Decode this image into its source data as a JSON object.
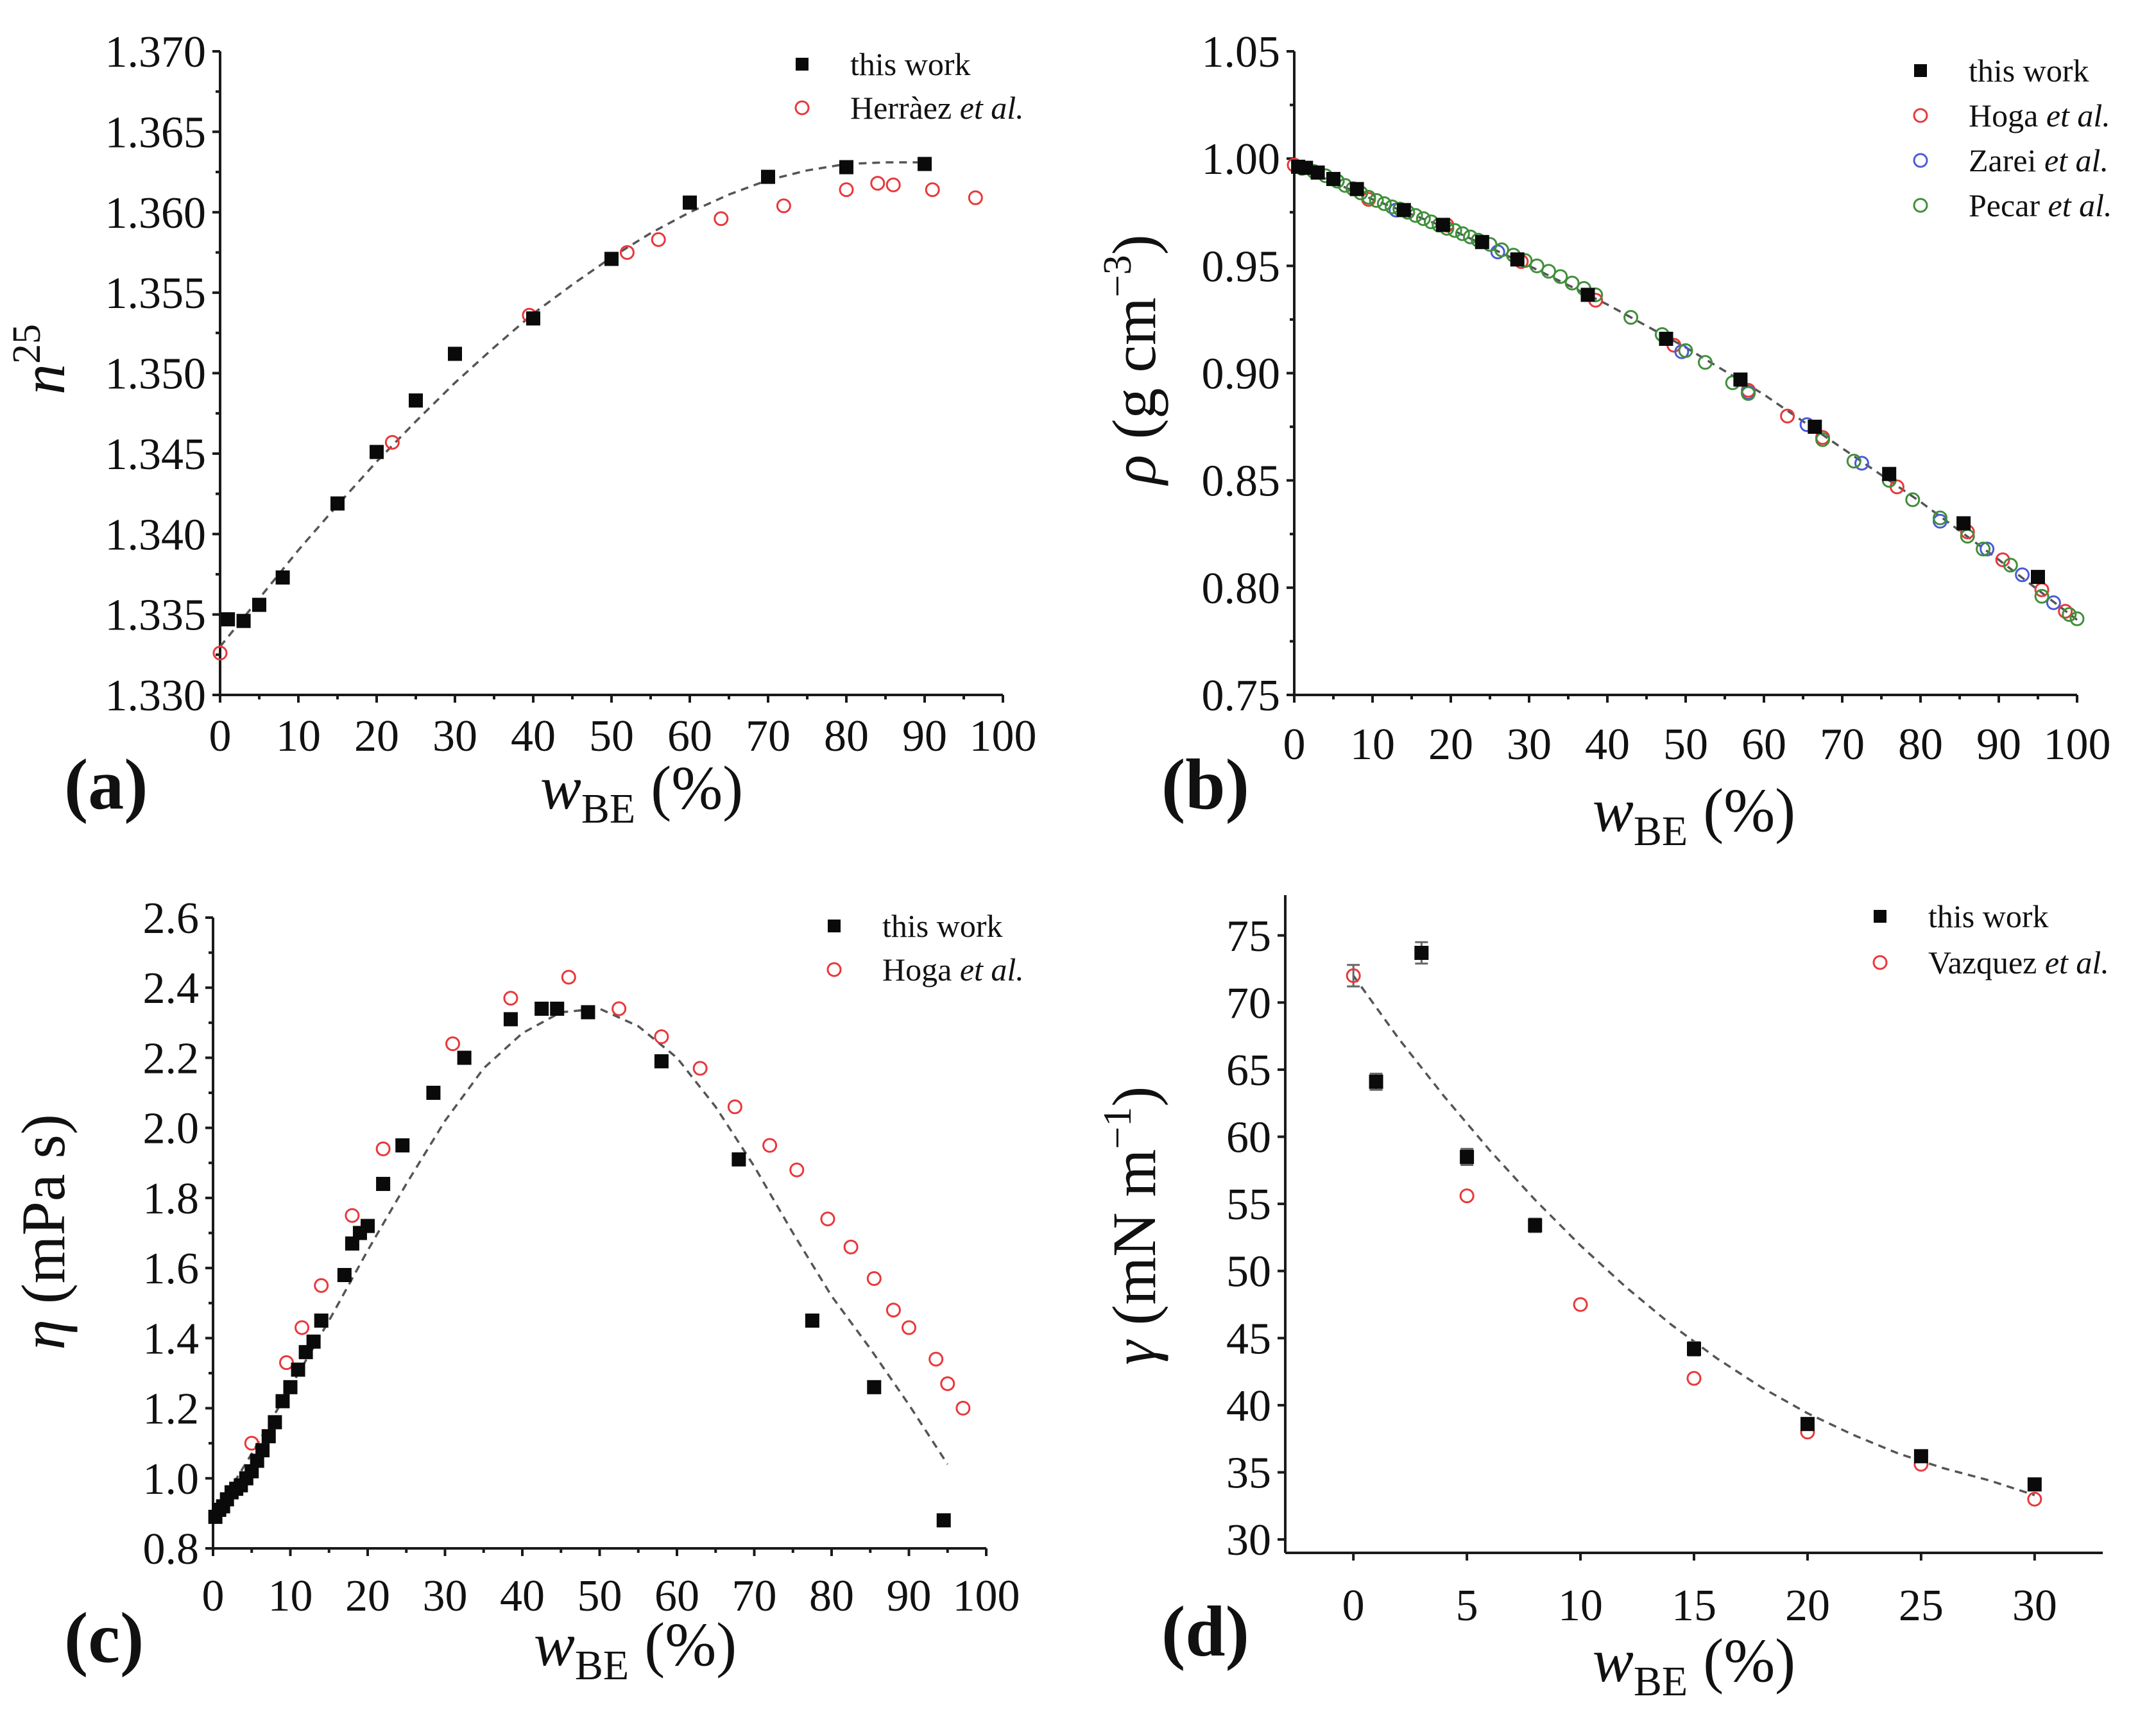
{
  "figure": {
    "colors": {
      "this_work": "#0a0a0a",
      "red": "#e8383b",
      "blue": "#4a5bd6",
      "green": "#3f8f3a",
      "fit": "#555555"
    },
    "x_label_sym": "w",
    "x_label_sub": "BE",
    "x_label_unit": " (%)"
  },
  "chart_data": [
    {
      "id": "a",
      "type": "scatter",
      "panel_label": "(a)",
      "ylabel": {
        "sym": "n",
        "sup": "25"
      },
      "xlim": [
        0,
        100
      ],
      "ylim": [
        1.33,
        1.37
      ],
      "xticks": [
        0,
        10,
        20,
        30,
        40,
        50,
        60,
        70,
        80,
        90,
        100
      ],
      "xtick_labels": [
        "0",
        "10",
        "20",
        "30",
        "40",
        "50",
        "60",
        "70",
        "80",
        "90",
        "100"
      ],
      "yticks": [
        1.33,
        1.335,
        1.34,
        1.345,
        1.35,
        1.355,
        1.36,
        1.365,
        1.37
      ],
      "ytick_labels": [
        "1.330",
        "1.335",
        "1.340",
        "1.345",
        "1.350",
        "1.355",
        "1.360",
        "1.365",
        "1.370"
      ],
      "series": [
        {
          "name": "this work",
          "author": "",
          "etal": "",
          "marker": "square",
          "color": "#0a0a0a",
          "x": [
            1,
            3,
            5,
            8,
            15,
            20,
            25,
            30,
            40,
            50,
            60,
            70,
            80,
            90
          ],
          "y": [
            1.3347,
            1.3346,
            1.3356,
            1.3373,
            1.3419,
            1.3451,
            1.3483,
            1.3512,
            1.3534,
            1.3571,
            1.3606,
            1.3622,
            1.3628,
            1.363
          ]
        },
        {
          "name": "Herràez et al.",
          "author": "Herràez ",
          "etal": "et al.",
          "marker": "circle",
          "color": "#e8383b",
          "x": [
            0,
            22,
            39.5,
            52,
            56,
            64,
            72,
            80,
            84,
            86,
            91,
            96.5
          ],
          "y": [
            1.3326,
            1.3457,
            1.3536,
            1.3575,
            1.3583,
            1.3596,
            1.3604,
            1.3614,
            1.3618,
            1.3617,
            1.3614,
            1.3609
          ]
        }
      ],
      "fit": {
        "x": [
          0,
          5,
          10,
          15,
          20,
          25,
          30,
          35,
          40,
          45,
          50,
          55,
          60,
          65,
          70,
          75,
          80,
          85,
          90
        ],
        "y": [
          1.333,
          1.336,
          1.339,
          1.3418,
          1.3445,
          1.347,
          1.3494,
          1.3516,
          1.3537,
          1.3555,
          1.3572,
          1.3587,
          1.36,
          1.3611,
          1.362,
          1.3626,
          1.363,
          1.3631,
          1.3631
        ]
      }
    },
    {
      "id": "b",
      "type": "scatter",
      "panel_label": "(b)",
      "ylabel": {
        "sym": "ρ",
        "text": " (g cm",
        "sup": "−3",
        "close": ")"
      },
      "xlim": [
        0,
        100
      ],
      "ylim": [
        0.75,
        1.05
      ],
      "xticks": [
        0,
        10,
        20,
        30,
        40,
        50,
        60,
        70,
        80,
        90,
        100
      ],
      "xtick_labels": [
        "0",
        "10",
        "20",
        "30",
        "40",
        "50",
        "60",
        "70",
        "80",
        "90",
        "100"
      ],
      "yticks": [
        0.75,
        0.8,
        0.85,
        0.9,
        0.95,
        1.0,
        1.05
      ],
      "ytick_labels": [
        "0.75",
        "0.80",
        "0.85",
        "0.90",
        "0.95",
        "1.00",
        "1.05"
      ],
      "series": [
        {
          "name": "this work",
          "author": "",
          "etal": "",
          "marker": "square",
          "color": "#0a0a0a",
          "x": [
            0.5,
            1.5,
            3,
            5,
            8,
            14,
            19,
            24,
            28.5,
            37.5,
            47.5,
            57,
            66.5,
            76,
            85.5,
            95
          ],
          "y": [
            0.9962,
            0.9957,
            0.9935,
            0.9905,
            0.9858,
            0.976,
            0.9691,
            0.9611,
            0.953,
            0.9365,
            0.916,
            0.897,
            0.875,
            0.853,
            0.83,
            0.805
          ]
        },
        {
          "name": "Hoga et al.",
          "author": "Hoga ",
          "etal": "et al.",
          "marker": "circle",
          "color": "#e8383b",
          "x": [
            0,
            9.5,
            19.5,
            29,
            38.5,
            48.5,
            58,
            63,
            67.5,
            77,
            86,
            90.5,
            95.5,
            98.5
          ],
          "y": [
            0.997,
            0.981,
            0.969,
            0.952,
            0.934,
            0.913,
            0.892,
            0.88,
            0.87,
            0.847,
            0.826,
            0.813,
            0.799,
            0.789
          ]
        },
        {
          "name": "Zarei et al.",
          "author": "Zarei ",
          "etal": "et al.",
          "marker": "circle",
          "color": "#4a5bd6",
          "x": [
            5.5,
            13,
            26,
            49.5,
            58,
            65.5,
            72.5,
            82.5,
            88.5,
            93,
            97
          ],
          "y": [
            0.9895,
            0.976,
            0.9565,
            0.91,
            0.891,
            0.876,
            0.858,
            0.831,
            0.818,
            0.806,
            0.793
          ]
        },
        {
          "name": "Pecar et al.",
          "author": "Pecar ",
          "etal": "et al.",
          "marker": "circle",
          "color": "#3f8f3a",
          "x": [
            1,
            2.5,
            4,
            5.5,
            6.5,
            7.5,
            8.5,
            9.5,
            10.5,
            11.5,
            12.5,
            13.5,
            14.5,
            15.5,
            16.5,
            17.5,
            18.5,
            19.5,
            20.5,
            21.5,
            22.5,
            23.5,
            25,
            26.5,
            28,
            29.5,
            31,
            32.5,
            34,
            35.5,
            37,
            38.5,
            43,
            47,
            50,
            52.5,
            56,
            58,
            67.5,
            71.5,
            76,
            79,
            82.5,
            86,
            88,
            91.5,
            95.5,
            99,
            100
          ],
          "y": [
            0.9955,
            0.994,
            0.992,
            0.9895,
            0.9875,
            0.986,
            0.984,
            0.982,
            0.9805,
            0.979,
            0.9775,
            0.9765,
            0.975,
            0.9735,
            0.972,
            0.9705,
            0.969,
            0.9675,
            0.9665,
            0.965,
            0.9635,
            0.962,
            0.96,
            0.9575,
            0.955,
            0.9525,
            0.95,
            0.9475,
            0.945,
            0.942,
            0.9395,
            0.9365,
            0.926,
            0.918,
            0.9105,
            0.905,
            0.8955,
            0.8905,
            0.869,
            0.859,
            0.85,
            0.841,
            0.8325,
            0.824,
            0.818,
            0.8105,
            0.796,
            0.7875,
            0.7855
          ]
        }
      ],
      "fit": {
        "x": [
          0,
          10,
          20,
          30,
          40,
          50,
          60,
          70,
          80,
          90,
          100
        ],
        "y": [
          0.997,
          0.981,
          0.967,
          0.95,
          0.932,
          0.912,
          0.89,
          0.865,
          0.84,
          0.813,
          0.785
        ]
      }
    },
    {
      "id": "c",
      "type": "scatter",
      "panel_label": "(c)",
      "ylabel": {
        "sym": "η",
        "text": " (mPa s)"
      },
      "xlim": [
        0,
        100
      ],
      "ylim": [
        0.8,
        2.6
      ],
      "xticks": [
        0,
        10,
        20,
        30,
        40,
        50,
        60,
        70,
        80,
        90,
        100
      ],
      "xtick_labels": [
        "0",
        "10",
        "20",
        "30",
        "40",
        "50",
        "60",
        "70",
        "80",
        "90",
        "100"
      ],
      "yticks": [
        0.8,
        1.0,
        1.2,
        1.4,
        1.6,
        1.8,
        2.0,
        2.2,
        2.4,
        2.6
      ],
      "ytick_labels": [
        "0.8",
        "1.0",
        "1.2",
        "1.4",
        "1.6",
        "1.8",
        "2.0",
        "2.2",
        "2.4",
        "2.6"
      ],
      "series": [
        {
          "name": "this work",
          "author": "",
          "etal": "",
          "marker": "square",
          "color": "#0a0a0a",
          "x": [
            0.3,
            0.8,
            1.3,
            1.8,
            2.4,
            3,
            3.6,
            4.3,
            5,
            5.7,
            6.4,
            7.2,
            8,
            9,
            10,
            11,
            12,
            13,
            14,
            17,
            18,
            19,
            20,
            22,
            24.5,
            28.5,
            32.5,
            38.5,
            42.5,
            44.5,
            48.5,
            58,
            68,
            77.5,
            85.5,
            94.5
          ],
          "y": [
            0.89,
            0.91,
            0.92,
            0.94,
            0.96,
            0.97,
            0.98,
            1.0,
            1.02,
            1.05,
            1.08,
            1.12,
            1.16,
            1.22,
            1.26,
            1.31,
            1.36,
            1.39,
            1.45,
            1.58,
            1.67,
            1.7,
            1.72,
            1.84,
            1.95,
            2.1,
            2.2,
            2.31,
            2.34,
            2.34,
            2.33,
            2.19,
            1.91,
            1.45,
            1.26,
            0.88
          ]
        },
        {
          "name": "Hoga et al.",
          "author": "Hoga ",
          "etal": "et al.",
          "marker": "circle",
          "color": "#e8383b",
          "x": [
            5,
            9.5,
            11.5,
            14,
            18,
            22,
            31,
            38.5,
            46,
            52.5,
            58,
            63,
            67.5,
            72,
            75.5,
            79.5,
            82.5,
            85.5,
            88,
            90,
            93.5,
            95,
            97
          ],
          "y": [
            1.1,
            1.33,
            1.43,
            1.55,
            1.75,
            1.94,
            2.24,
            2.37,
            2.43,
            2.34,
            2.26,
            2.17,
            2.06,
            1.95,
            1.88,
            1.74,
            1.66,
            1.57,
            1.48,
            1.43,
            1.34,
            1.27,
            1.2
          ]
        }
      ],
      "fit": {
        "x": [
          0,
          5,
          10,
          15,
          20,
          25,
          30,
          35,
          40,
          45,
          50,
          55,
          60,
          65,
          70,
          75,
          80,
          85,
          90,
          95
        ],
        "y": [
          0.89,
          1.07,
          1.26,
          1.45,
          1.65,
          1.84,
          2.02,
          2.17,
          2.27,
          2.33,
          2.34,
          2.29,
          2.2,
          2.06,
          1.89,
          1.7,
          1.52,
          1.37,
          1.21,
          1.04
        ]
      }
    },
    {
      "id": "d",
      "type": "scatter",
      "panel_label": "(d)",
      "ylabel": {
        "sym": "γ",
        "text": " (mN m",
        "sup": "−1",
        "close": ")"
      },
      "xlim": [
        -3,
        33
      ],
      "ylim": [
        29,
        78
      ],
      "xticks": [
        0,
        5,
        10,
        15,
        20,
        25,
        30
      ],
      "xtick_labels": [
        "0",
        "5",
        "10",
        "15",
        "20",
        "25",
        "30"
      ],
      "yticks": [
        30,
        35,
        40,
        45,
        50,
        55,
        60,
        65,
        70,
        75
      ],
      "ytick_labels": [
        "30",
        "35",
        "40",
        "45",
        "50",
        "55",
        "60",
        "65",
        "70",
        "75"
      ],
      "series": [
        {
          "name": "this work",
          "author": "",
          "etal": "",
          "marker": "square",
          "color": "#0a0a0a",
          "x": [
            1,
            3,
            5,
            8,
            15,
            20,
            25,
            30
          ],
          "y": [
            64.1,
            73.7,
            58.5,
            53.4,
            44.2,
            38.6,
            36.2,
            34.1
          ],
          "err": [
            0.6,
            0.8,
            0.6,
            0.5,
            0.5,
            0.4,
            0.3,
            0.3
          ]
        },
        {
          "name": "Vazquez et al.",
          "author": "Vazquez ",
          "etal": "et al.",
          "marker": "circle",
          "color": "#e8383b",
          "x": [
            0,
            5,
            10,
            15,
            20,
            25,
            30
          ],
          "y": [
            72.0,
            55.6,
            47.5,
            42.0,
            38.0,
            35.6,
            33.0
          ],
          "err": [
            0.8,
            0,
            0,
            0,
            0,
            0,
            0
          ]
        }
      ],
      "fit": {
        "x": [
          0,
          2,
          4,
          6,
          8,
          10,
          12,
          14,
          16,
          18,
          20,
          22,
          24,
          26,
          28,
          30
        ],
        "y": [
          72.0,
          67.3,
          63.0,
          59.0,
          55.3,
          51.9,
          48.8,
          46.0,
          43.5,
          41.3,
          39.4,
          37.8,
          36.4,
          35.3,
          34.4,
          33.3
        ]
      }
    }
  ]
}
